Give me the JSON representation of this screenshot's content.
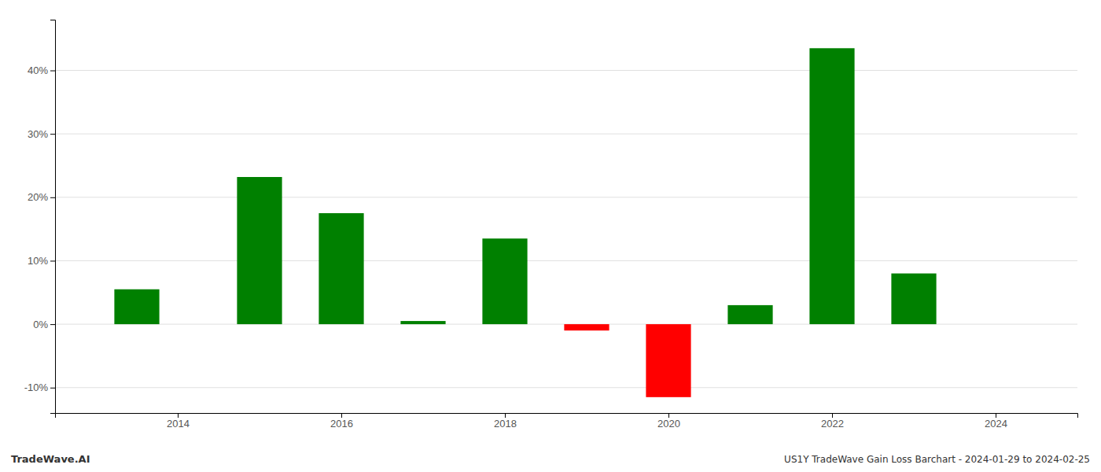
{
  "chart_data": {
    "type": "bar",
    "x": [
      2013.5,
      2015.0,
      2016.0,
      2017.0,
      2018.0,
      2019.0,
      2020.0,
      2021.0,
      2022.0,
      2023.0
    ],
    "values": [
      5.5,
      23.2,
      17.5,
      0.5,
      13.5,
      -1.0,
      -11.5,
      3.0,
      43.5,
      8.0
    ],
    "colors": [
      "#008000",
      "#008000",
      "#008000",
      "#008000",
      "#008000",
      "#ff0000",
      "#ff0000",
      "#008000",
      "#008000",
      "#008000"
    ],
    "xlim": [
      2012.5,
      2025.0
    ],
    "xticks": [
      2014,
      2016,
      2018,
      2020,
      2022,
      2024
    ],
    "ylim": [
      -14,
      48
    ],
    "yticks": [
      {
        "value": -10,
        "label": "-10%"
      },
      {
        "value": 0,
        "label": "0%"
      },
      {
        "value": 10,
        "label": "10%"
      },
      {
        "value": 20,
        "label": "20%"
      },
      {
        "value": 30,
        "label": "30%"
      },
      {
        "value": 40,
        "label": "40%"
      }
    ],
    "grid": true,
    "annotations": [
      "TradeWave.AI",
      "US1Y TradeWave Gain Loss Barchart - 2024-01-29 to 2024-02-25"
    ]
  }
}
